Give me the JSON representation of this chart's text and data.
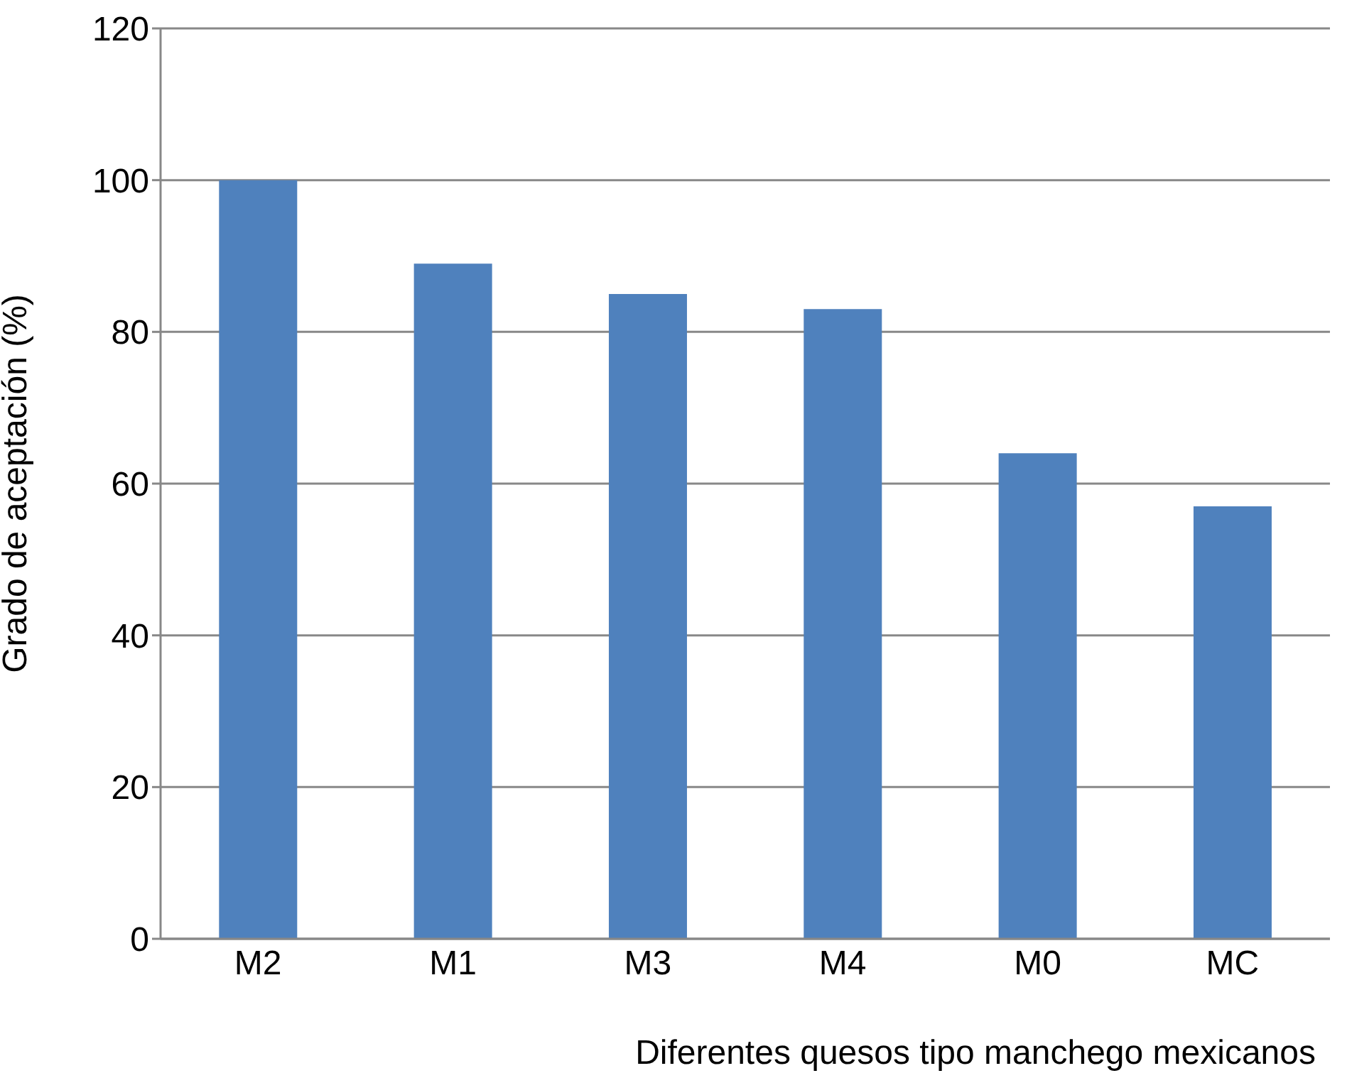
{
  "chart_data": {
    "type": "bar",
    "xlabel": "Diferentes quesos tipo manchego mexicanos",
    "ylabel": "Grado de aceptación (%)",
    "categories": [
      "M2",
      "M1",
      "M3",
      "M4",
      "M0",
      "MC"
    ],
    "values": [
      100,
      89,
      85,
      83,
      64,
      57
    ],
    "color": "#4f81bd",
    "ylim": [
      0,
      120
    ],
    "yticks": [
      0,
      20,
      40,
      60,
      80,
      100,
      120
    ],
    "grid": "y"
  }
}
